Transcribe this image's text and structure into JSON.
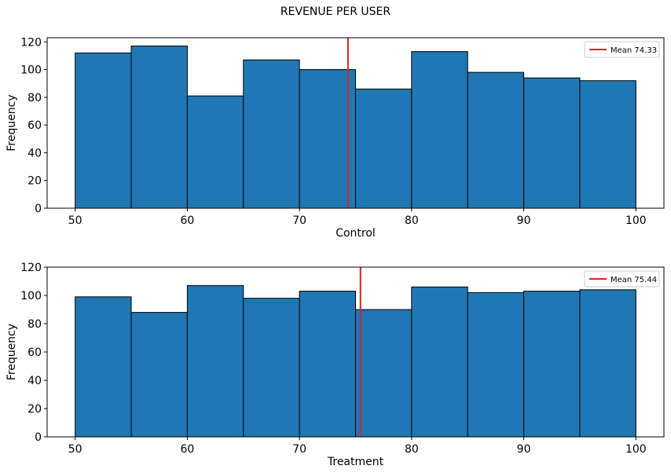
{
  "title": "REVENUE PER USER",
  "colors": {
    "bar": "#1f77b4",
    "bar_edge": "#000000",
    "mean_line": "#d62728"
  },
  "chart_data": [
    {
      "type": "bar",
      "subtype": "histogram",
      "bin_edges": [
        50,
        55,
        60,
        65,
        70,
        75,
        80,
        85,
        90,
        95,
        100
      ],
      "values": [
        112,
        117,
        81,
        107,
        100,
        86,
        113,
        98,
        94,
        92
      ],
      "mean": 74.33,
      "legend_label": "Mean 74.33",
      "legend_position": "top-right",
      "xlabel": "Control",
      "ylabel": "Frequency",
      "xlim": [
        47.5,
        102.5
      ],
      "ylim": [
        0,
        123
      ],
      "xticks": [
        50,
        60,
        70,
        80,
        90,
        100
      ],
      "yticks": [
        0,
        20,
        40,
        60,
        80,
        100,
        120
      ],
      "grid": false
    },
    {
      "type": "bar",
      "subtype": "histogram",
      "bin_edges": [
        50,
        55,
        60,
        65,
        70,
        75,
        80,
        85,
        90,
        95,
        100
      ],
      "values": [
        99,
        88,
        107,
        98,
        103,
        90,
        106,
        102,
        103,
        104
      ],
      "mean": 75.44,
      "legend_label": "Mean 75.44",
      "legend_position": "top-right",
      "xlabel": "Treatment",
      "ylabel": "Frequency",
      "xlim": [
        47.5,
        102.5
      ],
      "ylim": [
        0,
        120
      ],
      "xticks": [
        50,
        60,
        70,
        80,
        90,
        100
      ],
      "yticks": [
        0,
        20,
        40,
        60,
        80,
        100,
        120
      ],
      "grid": false
    }
  ]
}
